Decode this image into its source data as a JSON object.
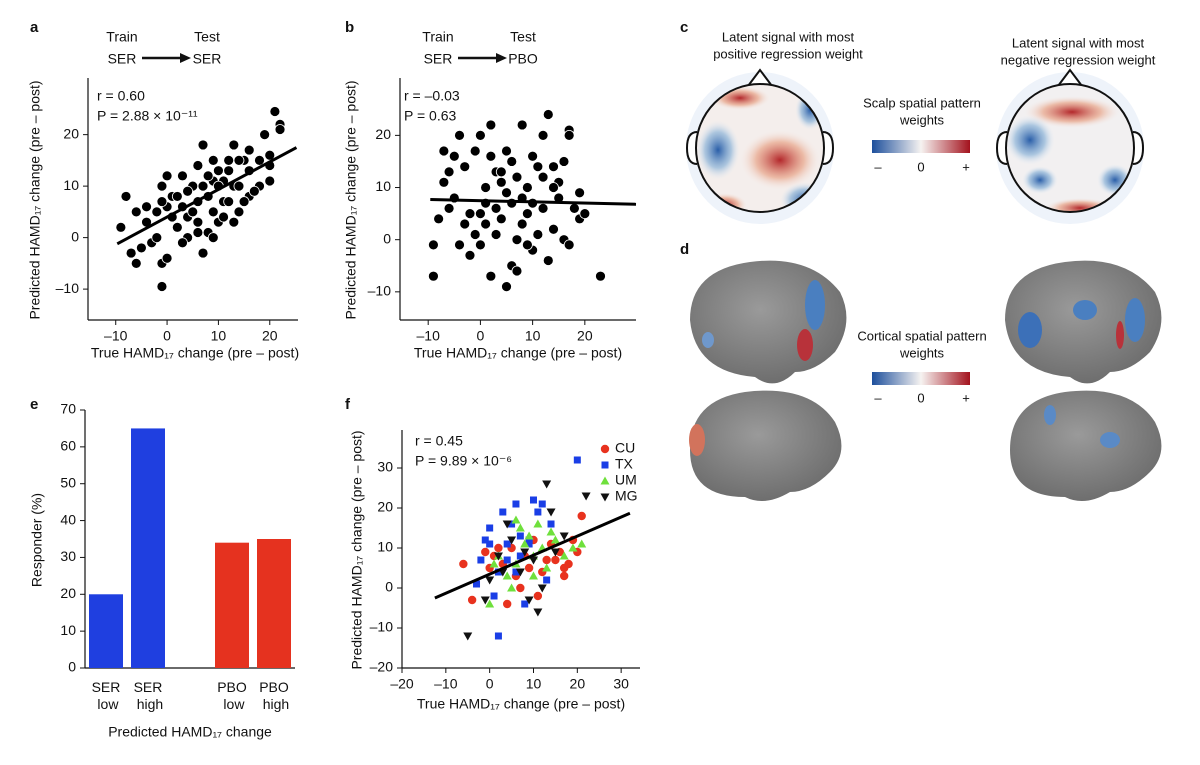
{
  "chart_data": [
    {
      "type": "scatter",
      "panel": "a",
      "scheme": {
        "train_label": "Train",
        "test_label": "Test",
        "train": "SER",
        "test": "SER"
      },
      "annotations": [
        "r = 0.60",
        "P = 2.88 × 10⁻¹¹"
      ],
      "xlabel": "True HAMD₁₇ change (pre – post)",
      "ylabel": "Predicted HAMD₁₇ change (pre – post)",
      "xlim": [
        -15.4,
        25.5
      ],
      "ylim": [
        -16,
        31
      ],
      "xticks": [
        {
          "value": -10,
          "label": "–10"
        },
        0,
        10,
        20
      ],
      "yticks": [
        {
          "value": -10,
          "label": "–10"
        },
        0,
        10,
        20
      ],
      "color": "#000000",
      "x": [
        21,
        19,
        22,
        22,
        20,
        18,
        15,
        14,
        9,
        10,
        12,
        16,
        11,
        9,
        10,
        13,
        14,
        7,
        5,
        3,
        6,
        0,
        -1,
        1,
        3,
        4,
        6,
        8,
        11,
        12,
        14,
        16,
        18,
        20,
        17,
        15,
        13,
        10,
        8,
        6,
        4,
        2,
        1,
        0,
        -1,
        -2,
        -4,
        -6,
        -8,
        -9,
        -7,
        -5,
        -3,
        -1,
        -1,
        0,
        -2,
        3,
        7,
        9,
        6,
        5,
        2,
        8,
        12,
        16,
        13,
        11,
        9,
        4,
        -4,
        -6,
        20,
        7
      ],
      "y": [
        24.5,
        20,
        22,
        21,
        14,
        15,
        15,
        15,
        15,
        13,
        13,
        13,
        11,
        11,
        10,
        10,
        10,
        10,
        10,
        12,
        14,
        12,
        10,
        8,
        6,
        4,
        7,
        8,
        7,
        7,
        5,
        8,
        10,
        11,
        9,
        7,
        3,
        3,
        1,
        3,
        0,
        2,
        4,
        6,
        7,
        5,
        6,
        5,
        8,
        2,
        -3,
        -2,
        -1,
        -5,
        -9.5,
        -4,
        0,
        -1,
        -3,
        0,
        1,
        5,
        8,
        12,
        15,
        17,
        18,
        4,
        5,
        9,
        3,
        -5,
        16,
        18
      ],
      "fit": {
        "x": [
          -9.7,
          25.2
        ],
        "y": [
          -1.2,
          17.5
        ]
      }
    },
    {
      "type": "scatter",
      "panel": "b",
      "scheme": {
        "train_label": "Train",
        "test_label": "Test",
        "train": "SER",
        "test": "PBO"
      },
      "annotations": [
        "r = –0.03",
        "P = 0.63"
      ],
      "xlabel": "True HAMD₁₇ change (pre – post)",
      "ylabel": "Predicted HAMD₁₇ change (pre – post)",
      "xlim": [
        -15.4,
        29.8
      ],
      "ylim": [
        -15.4,
        31
      ],
      "xticks": [
        {
          "value": -10,
          "label": "–10"
        },
        0,
        10,
        20
      ],
      "yticks": [
        {
          "value": -10,
          "label": "–10"
        },
        0,
        10,
        20
      ],
      "color": "#000000",
      "x": [
        23,
        19,
        17,
        17,
        16,
        15,
        14,
        13,
        12,
        11,
        10,
        9,
        8,
        7,
        6,
        5,
        4,
        3,
        2,
        1,
        0,
        -1,
        -2,
        -3,
        -4,
        -5,
        -6,
        -7,
        -8,
        -9,
        -9,
        -6,
        -4,
        -2,
        0,
        1,
        2,
        3,
        4,
        5,
        6,
        7,
        8,
        9,
        10,
        11,
        12,
        13,
        14,
        15,
        16,
        17,
        18,
        19,
        20,
        6,
        5,
        3,
        1,
        0,
        -1,
        -3,
        10,
        12,
        8,
        4,
        7,
        14,
        2,
        9,
        -5,
        -7
      ],
      "y": [
        -7,
        4,
        21,
        20,
        15,
        11,
        10,
        24,
        12,
        14,
        7,
        10,
        8,
        12,
        15,
        17,
        11,
        13,
        22,
        10,
        20,
        17,
        5,
        14,
        20,
        8,
        6,
        11,
        4,
        -1,
        -7,
        13,
        -1,
        -3,
        -1,
        3,
        -7,
        1,
        4,
        -9,
        -5,
        0,
        3,
        5,
        -2,
        1,
        6,
        -4,
        2,
        8,
        0,
        -1,
        6,
        9,
        5,
        7,
        9,
        6,
        7,
        5,
        1,
        3,
        16,
        20,
        22,
        13,
        -6,
        14,
        16,
        -1,
        16,
        17
      ],
      "fit": {
        "x": [
          -9.6,
          29.8
        ],
        "y": [
          7.7,
          6.8
        ]
      }
    },
    {
      "type": "bar",
      "panel": "e",
      "xlabel": "Predicted HAMD₁₇ change",
      "ylabel": "Responder (%)",
      "categories": [
        "SER low",
        "SER high",
        null,
        "PBO low",
        "PBO high"
      ],
      "values": [
        20,
        65,
        null,
        34,
        35
      ],
      "colors": [
        "#1f3fe0",
        "#1f3fe0",
        null,
        "#e5321f",
        "#e5321f"
      ],
      "ylim": [
        0,
        70
      ],
      "yticks": [
        0,
        10,
        20,
        30,
        40,
        50,
        60,
        70
      ]
    },
    {
      "type": "scatter",
      "panel": "f",
      "annotations": [
        "r = 0.45",
        "P = 9.89 × 10⁻⁶"
      ],
      "xlabel": "True HAMD₁₇ change (pre – post)",
      "ylabel": "Predicted HAMD₁₇ change (pre – post)",
      "xlim": [
        -20,
        34.3
      ],
      "ylim": [
        -20,
        39.5
      ],
      "xticks": [
        {
          "value": -20,
          "label": "–20"
        },
        {
          "value": -10,
          "label": "–10"
        },
        0,
        10,
        20,
        30
      ],
      "yticks": [
        {
          "value": -20,
          "label": "–20"
        },
        {
          "value": -10,
          "label": "–10"
        },
        0,
        10,
        20,
        30
      ],
      "legend": "upper right",
      "series": [
        {
          "name": "CU",
          "color": "#e8321e",
          "marker": "circle",
          "x": [
            -6,
            -4,
            -1,
            0,
            1,
            2,
            4,
            5,
            6,
            8,
            9,
            10,
            11,
            12,
            13,
            14,
            15,
            16,
            17,
            18,
            19,
            20,
            21,
            3,
            7,
            17
          ],
          "y": [
            6,
            -3,
            9,
            5,
            8,
            10,
            -4,
            10,
            3,
            8,
            5,
            12,
            -2,
            4,
            7,
            11,
            7,
            9,
            3,
            6,
            12,
            9,
            18,
            6,
            0,
            5
          ]
        },
        {
          "name": "TX",
          "color": "#1a3ee6",
          "marker": "square",
          "x": [
            -3,
            -1,
            0,
            1,
            2,
            3,
            4,
            5,
            6,
            7,
            8,
            9,
            10,
            11,
            12,
            13,
            14,
            20,
            -2,
            0,
            2,
            6,
            9,
            4,
            7
          ],
          "y": [
            1,
            12,
            15,
            -2,
            -12,
            19,
            7,
            16,
            21,
            13,
            -4,
            11,
            22,
            19,
            21,
            2,
            16,
            32,
            7,
            11,
            4,
            4,
            12,
            11,
            8
          ]
        },
        {
          "name": "UM",
          "color": "#6fe03c",
          "marker": "triangle",
          "x": [
            0,
            1,
            2,
            4,
            5,
            6,
            7,
            8,
            9,
            10,
            11,
            12,
            13,
            14,
            17,
            19,
            21,
            6,
            10,
            15
          ],
          "y": [
            -4,
            6,
            8,
            3,
            0,
            17,
            15,
            11,
            13,
            8,
            16,
            10,
            5,
            14,
            8,
            10,
            11,
            6,
            3,
            12
          ]
        },
        {
          "name": "MG",
          "color": "#111111",
          "marker": "triangle-down",
          "x": [
            -5,
            -1,
            0,
            2,
            3,
            5,
            7,
            9,
            10,
            11,
            13,
            14,
            15,
            17,
            22,
            12,
            8,
            4
          ],
          "y": [
            -12,
            -3,
            2,
            8,
            4,
            12,
            4,
            -3,
            7,
            -6,
            26,
            19,
            9,
            13,
            23,
            0,
            9,
            16
          ]
        }
      ],
      "fit": {
        "x": [
          -12.5,
          32
        ],
        "y": [
          -2.5,
          18.7
        ]
      }
    }
  ],
  "maps": {
    "panel_c": "c",
    "panel_d": "d",
    "scalp_titles": [
      [
        "Latent signal with most",
        "positive regression weight"
      ],
      [
        "Latent signal with most",
        "negative regression weight"
      ]
    ],
    "scalp_legend": [
      "Scalp spatial pattern",
      "weights"
    ],
    "cortical_legend": [
      "Cortical spatial pattern",
      "weights"
    ],
    "scale_labels": [
      "–",
      "0",
      "+"
    ]
  }
}
